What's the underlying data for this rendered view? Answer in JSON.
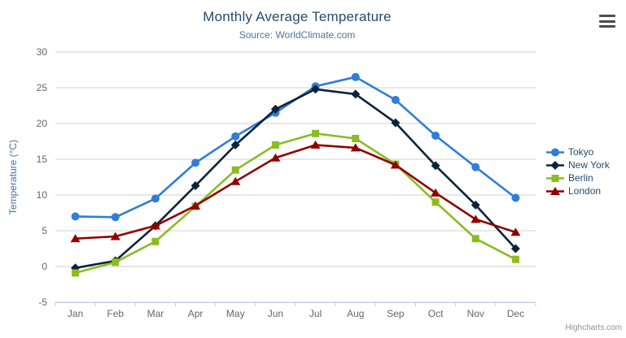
{
  "header": {
    "title": "Monthly Average Temperature",
    "subtitle": "Source: WorldClimate.com"
  },
  "credit": "Highcharts.com",
  "export_menu": {
    "icon": "hamburger-icon"
  },
  "colors": {
    "title_text": "#274b6d",
    "subtitle_text": "#4d759e",
    "axis_label_text": "#666666",
    "y_axis_title_text": "#4572a7",
    "grid_line": "#d0d0d0",
    "x_axis_line": "#c0d0e0",
    "legend_text": "#274b6d",
    "credit_text": "#909090"
  },
  "chart_data": {
    "type": "line",
    "title": "Monthly Average Temperature",
    "subtitle": "Source: WorldClimate.com",
    "ylabel": "Temperature (°C)",
    "xlabel": "",
    "ylim": [
      -5,
      30
    ],
    "ytick_interval": 5,
    "yticks": [
      -5,
      0,
      5,
      10,
      15,
      20,
      25,
      30
    ],
    "grid": true,
    "legend_position": "right",
    "categories": [
      "Jan",
      "Feb",
      "Mar",
      "Apr",
      "May",
      "Jun",
      "Jul",
      "Aug",
      "Sep",
      "Oct",
      "Nov",
      "Dec"
    ],
    "series": [
      {
        "name": "Tokyo",
        "color": "#2f7ed8",
        "marker": "circle",
        "values": [
          7.0,
          6.9,
          9.5,
          14.5,
          18.2,
          21.5,
          25.2,
          26.5,
          23.3,
          18.3,
          13.9,
          9.6
        ]
      },
      {
        "name": "New York",
        "color": "#0d233a",
        "marker": "diamond",
        "values": [
          -0.2,
          0.8,
          5.7,
          11.3,
          17.0,
          22.0,
          24.8,
          24.1,
          20.1,
          14.1,
          8.6,
          2.5
        ]
      },
      {
        "name": "Berlin",
        "color": "#8bbc21",
        "marker": "square",
        "values": [
          -0.9,
          0.6,
          3.5,
          8.4,
          13.5,
          17.0,
          18.6,
          17.9,
          14.3,
          9.0,
          3.9,
          1.0
        ]
      },
      {
        "name": "London",
        "color": "#910000",
        "marker": "triangle",
        "values": [
          3.9,
          4.2,
          5.7,
          8.5,
          11.9,
          15.2,
          17.0,
          16.6,
          14.2,
          10.3,
          6.6,
          4.8
        ]
      }
    ]
  }
}
